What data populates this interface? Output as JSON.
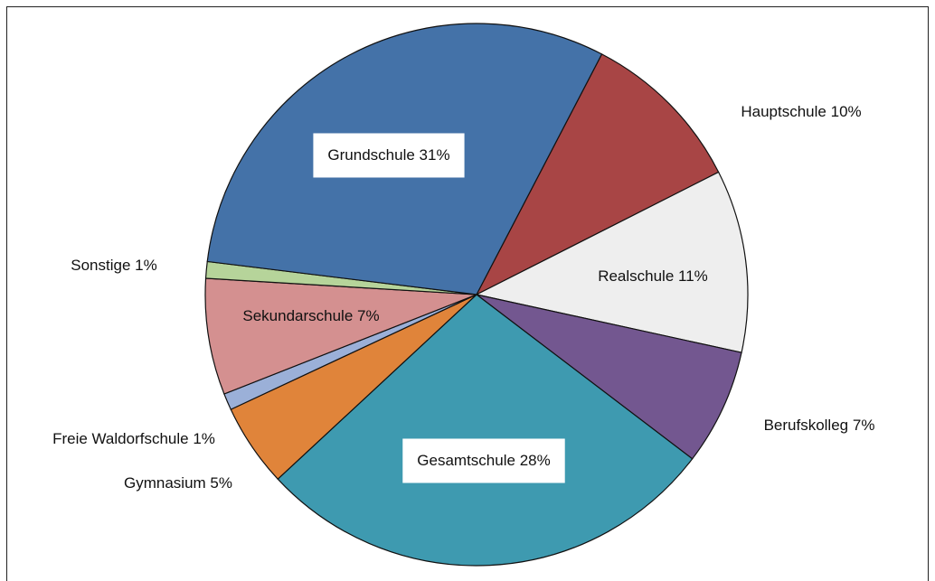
{
  "chart_data": {
    "type": "pie",
    "categories": [
      "Hauptschule",
      "Realschule",
      "Berufskolleg",
      "Gesamtschule",
      "Gymnasium",
      "Freie Waldorfschule",
      "Sekundarschule",
      "Sonstige",
      "Grundschule"
    ],
    "values": [
      10,
      11,
      7,
      28,
      5,
      1,
      7,
      1,
      31
    ],
    "value_labels": [
      "10%",
      "11%",
      "7%",
      "28%",
      "5%",
      "1%",
      "7%",
      "1%",
      "31%"
    ],
    "colors": [
      "#a84545",
      "#eeeeee",
      "#735790",
      "#3e9ab0",
      "#e0843a",
      "#9bb0d8",
      "#d49090",
      "#b6d49a",
      "#4472a8"
    ]
  }
}
